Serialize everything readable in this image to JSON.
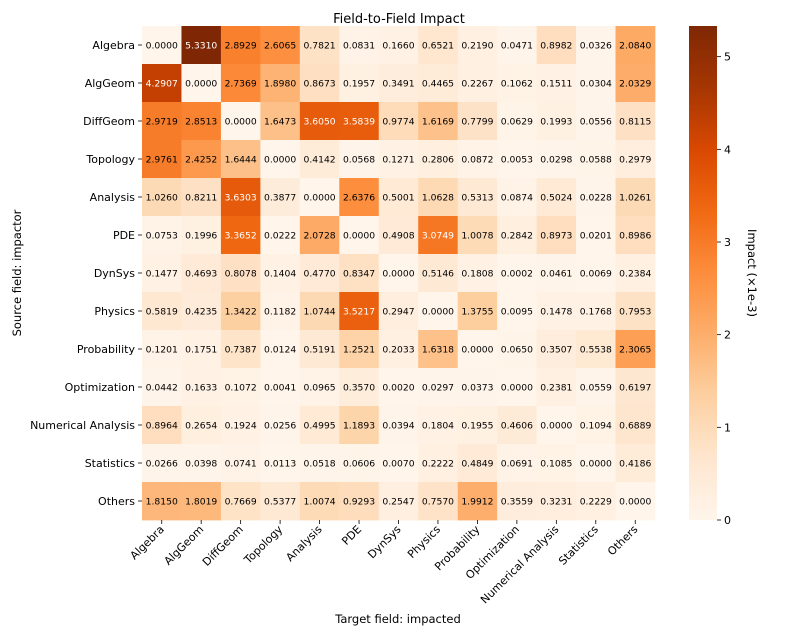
{
  "chart_data": {
    "type": "heatmap",
    "title": "Field-to-Field Impact",
    "xlabel": "Target field: impacted",
    "ylabel": "Source field: impactor",
    "colorbar_label": "Impact (×1e-3)",
    "colorbar_range": [
      0,
      5.331
    ],
    "colorbar_ticks": [
      0,
      1,
      2,
      3,
      4,
      5
    ],
    "colormap": "Oranges",
    "colormap_stops": [
      "#fff5eb",
      "#fee6ce",
      "#fdd0a2",
      "#fdae6b",
      "#fd8d3c",
      "#f16913",
      "#d94801",
      "#a63603",
      "#7f2704"
    ],
    "x_categories": [
      "Algebra",
      "AlgGeom",
      "DiffGeom",
      "Topology",
      "Analysis",
      "PDE",
      "DynSys",
      "Physics",
      "Probability",
      "Optimization",
      "Numerical Analysis",
      "Statistics",
      "Others"
    ],
    "y_categories": [
      "Algebra",
      "AlgGeom",
      "DiffGeom",
      "Topology",
      "Analysis",
      "PDE",
      "DynSys",
      "Physics",
      "Probability",
      "Optimization",
      "Numerical Analysis",
      "Statistics",
      "Others"
    ],
    "values": [
      [
        "0.0000",
        "5.3310",
        "2.8929",
        "2.6065",
        "0.7821",
        "0.0831",
        "0.1660",
        "0.6521",
        "0.2190",
        "0.0471",
        "0.8982",
        "0.0326",
        "2.0840"
      ],
      [
        "4.2907",
        "0.0000",
        "2.7369",
        "1.8980",
        "0.8673",
        "0.1957",
        "0.3491",
        "0.4465",
        "0.2267",
        "0.1062",
        "0.1511",
        "0.0304",
        "2.0329"
      ],
      [
        "2.9719",
        "2.8513",
        "0.0000",
        "1.6473",
        "3.6050",
        "3.5839",
        "0.9774",
        "1.6169",
        "0.7799",
        "0.0629",
        "0.1993",
        "0.0556",
        "0.8115"
      ],
      [
        "2.9761",
        "2.4252",
        "1.6444",
        "0.0000",
        "0.4142",
        "0.0568",
        "0.1271",
        "0.2806",
        "0.0872",
        "0.0053",
        "0.0298",
        "0.0588",
        "0.2979"
      ],
      [
        "1.0260",
        "0.8211",
        "3.6303",
        "0.3877",
        "0.0000",
        "2.6376",
        "0.5001",
        "1.0628",
        "0.5313",
        "0.0874",
        "0.5024",
        "0.0228",
        "1.0261"
      ],
      [
        "0.0753",
        "0.1996",
        "3.3652",
        "0.0222",
        "2.0728",
        "0.0000",
        "0.4908",
        "3.0749",
        "1.0078",
        "0.2842",
        "0.8973",
        "0.0201",
        "0.8986"
      ],
      [
        "0.1477",
        "0.4693",
        "0.8078",
        "0.1404",
        "0.4770",
        "0.8347",
        "0.0000",
        "0.5146",
        "0.1808",
        "0.0002",
        "0.0461",
        "0.0069",
        "0.2384"
      ],
      [
        "0.5819",
        "0.4235",
        "1.3422",
        "0.1182",
        "1.0744",
        "3.5217",
        "0.2947",
        "0.0000",
        "1.3755",
        "0.0095",
        "0.1478",
        "0.1768",
        "0.7953"
      ],
      [
        "0.1201",
        "0.1751",
        "0.7387",
        "0.0124",
        "0.5191",
        "1.2521",
        "0.2033",
        "1.6318",
        "0.0000",
        "0.0650",
        "0.3507",
        "0.5538",
        "2.3065"
      ],
      [
        "0.0442",
        "0.1633",
        "0.1072",
        "0.0041",
        "0.0965",
        "0.3570",
        "0.0020",
        "0.0297",
        "0.0373",
        "0.0000",
        "0.2381",
        "0.0559",
        "0.6197"
      ],
      [
        "0.8964",
        "0.2654",
        "0.1924",
        "0.0256",
        "0.4995",
        "1.1893",
        "0.0394",
        "0.1804",
        "0.1955",
        "0.4606",
        "0.0000",
        "0.1094",
        "0.6889"
      ],
      [
        "0.0266",
        "0.0398",
        "0.0741",
        "0.0113",
        "0.0518",
        "0.0606",
        "0.0070",
        "0.2222",
        "0.4849",
        "0.0691",
        "0.1085",
        "0.0000",
        "0.4186"
      ],
      [
        "1.8150",
        "1.8019",
        "0.7669",
        "0.5377",
        "1.0074",
        "0.9293",
        "0.2547",
        "0.7570",
        "1.9912",
        "0.3559",
        "0.3231",
        "0.2229",
        "0.0000"
      ]
    ]
  }
}
